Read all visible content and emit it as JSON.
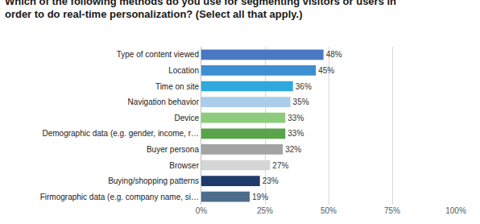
{
  "chart_data": {
    "type": "bar",
    "orientation": "horizontal",
    "title": "Which of the following methods do you use for segmenting visitors or users in order to do real-time personalization? (Select all that apply.)",
    "categories": [
      "Type of content viewed",
      "Location",
      "Time on site",
      "Navigation behavior",
      "Device",
      "Demographic data (e.g. gender, income, r…",
      "Buyer persona",
      "Browser",
      "Buying/shopping patterns",
      "Firmographic data (e.g. company name, si…"
    ],
    "values": [
      48,
      45,
      36,
      35,
      33,
      33,
      32,
      27,
      23,
      19
    ],
    "value_labels": [
      "48%",
      "45%",
      "36%",
      "35%",
      "33%",
      "33%",
      "32%",
      "27%",
      "23%",
      "19%"
    ],
    "colors": [
      "#4a78c2",
      "#3d8fd1",
      "#2fa9dd",
      "#a9cdea",
      "#8dcb7c",
      "#5aa44b",
      "#a3a3a3",
      "#d6d6d6",
      "#1f3a6b",
      "#4e6d8c"
    ],
    "xlim": [
      0,
      100
    ],
    "xticks": [
      {
        "value": 0,
        "label": "0%"
      },
      {
        "value": 25,
        "label": "25%"
      },
      {
        "value": 50,
        "label": "50%"
      },
      {
        "value": 75,
        "label": "75%"
      },
      {
        "value": 100,
        "label": "100%"
      }
    ],
    "grid": true,
    "data_labels": true
  }
}
